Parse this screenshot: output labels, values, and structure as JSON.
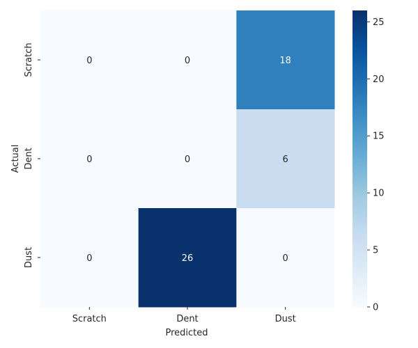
{
  "chart_data": {
    "type": "heatmap",
    "xlabel": "Predicted",
    "ylabel": "Actual",
    "x_categories": [
      "Scratch",
      "Dent",
      "Dust"
    ],
    "y_categories": [
      "Scratch",
      "Dent",
      "Dust"
    ],
    "values": [
      [
        0,
        0,
        18
      ],
      [
        0,
        0,
        6
      ],
      [
        0,
        26,
        0
      ]
    ],
    "colormap": "Blues",
    "colorbar": {
      "min": 0,
      "max": 26,
      "ticks": [
        0,
        5,
        10,
        15,
        20,
        25
      ]
    }
  }
}
